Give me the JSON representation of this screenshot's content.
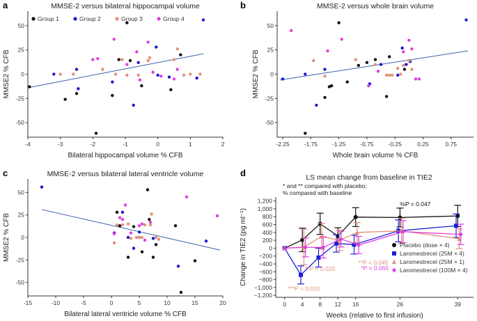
{
  "figure": {
    "colors": {
      "group1": "#111111",
      "group2": "#1c1cd6",
      "group3": "#e0917a",
      "group4": "#e040e0",
      "fit": "#3a5fa8"
    }
  },
  "chart_data": [
    {
      "panel": "a",
      "type": "scatter",
      "title": "MMSE-2 versus bilateral hippocampal volume",
      "xlabel": "Bilateral hippocampal volume % CFB",
      "ylabel": "MMSE2 % CFB",
      "xlim": [
        -4,
        2
      ],
      "ylim": [
        -65,
        65
      ],
      "xticks": [
        -4,
        -3,
        -2,
        -1,
        0,
        1,
        2
      ],
      "yticks": [
        -50,
        -25,
        0,
        25,
        50
      ],
      "legend": [
        "Group 1",
        "Group 2",
        "Group 3",
        "Group 4"
      ],
      "fit": [
        [
          -4,
          -14
        ],
        [
          1.4,
          21
        ]
      ],
      "series": [
        {
          "name": "Group 1",
          "points": [
            [
              -3.95,
              -13
            ],
            [
              -2.85,
              -26
            ],
            [
              -2.5,
              -20
            ],
            [
              -1.9,
              -61
            ],
            [
              -1.4,
              -22
            ],
            [
              -1.2,
              15
            ],
            [
              -0.95,
              53
            ],
            [
              -0.85,
              14
            ],
            [
              -0.5,
              -12
            ],
            [
              0.4,
              -16
            ],
            [
              0.7,
              20
            ]
          ]
        },
        {
          "name": "Group 2",
          "points": [
            [
              -3.2,
              0
            ],
            [
              -2.5,
              5
            ],
            [
              -2.45,
              -15
            ],
            [
              -1.4,
              -8
            ],
            [
              -0.75,
              -32
            ],
            [
              -0.6,
              12
            ],
            [
              -0.05,
              28
            ],
            [
              0,
              -1
            ],
            [
              0.35,
              -3
            ],
            [
              1.2,
              -4
            ],
            [
              1.4,
              56
            ]
          ]
        },
        {
          "name": "Group 3",
          "points": [
            [
              -3.0,
              0
            ],
            [
              -2.6,
              0
            ],
            [
              -1.7,
              5
            ],
            [
              -1.3,
              0
            ],
            [
              -1.1,
              15
            ],
            [
              -0.95,
              -1
            ],
            [
              -0.6,
              -1
            ],
            [
              -0.3,
              14
            ],
            [
              -0.25,
              17
            ],
            [
              0.5,
              15
            ],
            [
              0.6,
              26
            ],
            [
              0.8,
              -1
            ],
            [
              1.0,
              0
            ],
            [
              1.3,
              0
            ]
          ]
        },
        {
          "name": "Group 4",
          "points": [
            [
              -2.0,
              15
            ],
            [
              -1.85,
              16
            ],
            [
              -1.35,
              36
            ],
            [
              -0.95,
              10
            ],
            [
              -0.65,
              23
            ],
            [
              -0.55,
              -6
            ],
            [
              -0.3,
              33
            ],
            [
              -0.15,
              2
            ],
            [
              0.1,
              -2
            ],
            [
              0.5,
              -5
            ],
            [
              0.6,
              5
            ]
          ]
        }
      ]
    },
    {
      "panel": "b",
      "type": "scatter",
      "title": "MMSE-2 versus whole brain volume",
      "xlabel": "Whole brain volume % CFB",
      "ylabel": "MMSE2 % CFB",
      "xlim": [
        -2.35,
        1.15
      ],
      "ylim": [
        -65,
        65
      ],
      "xticks": [
        "-2.25",
        "-1.75",
        "-1.25",
        "-0.75",
        "-0.25",
        "0.25",
        "0.75"
      ],
      "xtickvals": [
        -2.25,
        -1.75,
        -1.25,
        -0.75,
        -0.25,
        0.25,
        0.75
      ],
      "yticks": [
        -50,
        -25,
        0,
        25,
        50
      ],
      "fit": [
        [
          -2.3,
          -6
        ],
        [
          1.05,
          24
        ]
      ],
      "series": [
        {
          "name": "Group 1",
          "points": [
            [
              -1.85,
              -61
            ],
            [
              -1.5,
              -24
            ],
            [
              -1.42,
              -13
            ],
            [
              -1.38,
              -12
            ],
            [
              -1.25,
              53
            ],
            [
              -1.1,
              -8
            ],
            [
              -0.9,
              9
            ],
            [
              -0.75,
              12
            ],
            [
              -0.6,
              15
            ],
            [
              -0.4,
              -23
            ],
            [
              -0.35,
              18
            ],
            [
              -0.08,
              5
            ]
          ]
        },
        {
          "name": "Group 2",
          "points": [
            [
              -2.25,
              -5
            ],
            [
              -1.85,
              0
            ],
            [
              -1.65,
              -32
            ],
            [
              -1.5,
              5
            ],
            [
              -0.7,
              -10
            ],
            [
              -0.5,
              10
            ],
            [
              -0.2,
              -1
            ],
            [
              -0.12,
              27
            ],
            [
              -0.05,
              10
            ],
            [
              0.02,
              13
            ],
            [
              1.02,
              56
            ]
          ]
        },
        {
          "name": "Group 3",
          "points": [
            [
              -1.7,
              14
            ],
            [
              -1.5,
              -2
            ],
            [
              -0.95,
              15
            ],
            [
              -0.6,
              10
            ],
            [
              -0.35,
              -1
            ],
            [
              -0.3,
              -1
            ],
            [
              -0.2,
              6
            ],
            [
              -0.15,
              0
            ],
            [
              -0.1,
              9
            ],
            [
              0.0,
              14
            ],
            [
              0.05,
              5
            ],
            [
              -0.4,
              -1
            ]
          ]
        },
        {
          "name": "Group 4",
          "points": [
            [
              -2.1,
              45
            ],
            [
              -1.45,
              24
            ],
            [
              -1.2,
              36
            ],
            [
              -0.72,
              -12
            ],
            [
              -0.55,
              3
            ],
            [
              -0.1,
              23
            ],
            [
              0.0,
              35
            ],
            [
              0.05,
              26
            ],
            [
              0.12,
              -5
            ],
            [
              0.18,
              -5
            ]
          ]
        }
      ]
    },
    {
      "panel": "c",
      "type": "scatter",
      "title": "MMSE-2 versus bilateral lateral ventricle volume",
      "xlabel": "Bilateral lateral ventricle volume % CFB",
      "ylabel": "MMSE2 % CFB",
      "xlim": [
        -15,
        20
      ],
      "ylim": [
        -65,
        65
      ],
      "xticks": [
        -15,
        -10,
        -5,
        0,
        5,
        10,
        15,
        20
      ],
      "yticks": [
        -50,
        -25,
        0,
        25,
        50
      ],
      "fit": [
        [
          -12.5,
          31
        ],
        [
          19.5,
          -14
        ]
      ],
      "series": [
        {
          "name": "Group 1",
          "points": [
            [
              1.0,
              28
            ],
            [
              1.5,
              13
            ],
            [
              3.0,
              -22
            ],
            [
              4.0,
              12
            ],
            [
              5.0,
              0
            ],
            [
              5.5,
              -16
            ],
            [
              6.5,
              53
            ],
            [
              6.8,
              20
            ],
            [
              7.5,
              -22
            ],
            [
              8.0,
              -8
            ],
            [
              11.5,
              13
            ],
            [
              12.5,
              -61
            ],
            [
              15.0,
              -26
            ]
          ]
        },
        {
          "name": "Group 2",
          "points": [
            [
              -12.5,
              56
            ],
            [
              0.5,
              5
            ],
            [
              2.0,
              28
            ],
            [
              3.0,
              0
            ],
            [
              4.0,
              -12
            ],
            [
              5.0,
              6
            ],
            [
              7.5,
              -1
            ],
            [
              12.0,
              -32
            ],
            [
              17.0,
              -4
            ]
          ]
        },
        {
          "name": "Group 3",
          "points": [
            [
              0.5,
              -6
            ],
            [
              1.0,
              14
            ],
            [
              2.0,
              14
            ],
            [
              3.0,
              15
            ],
            [
              3.5,
              -1
            ],
            [
              4.5,
              0
            ],
            [
              5.0,
              0
            ],
            [
              5.5,
              0
            ],
            [
              6.0,
              14
            ],
            [
              7.0,
              14
            ],
            [
              7.2,
              26
            ],
            [
              8.0,
              0
            ],
            [
              8.5,
              -2
            ]
          ]
        },
        {
          "name": "Group 4",
          "points": [
            [
              0.5,
              4
            ],
            [
              1.5,
              22
            ],
            [
              2.0,
              20
            ],
            [
              2.5,
              36
            ],
            [
              3.5,
              5
            ],
            [
              5.0,
              13
            ],
            [
              5.5,
              15
            ],
            [
              6.0,
              -3
            ],
            [
              7.0,
              17
            ],
            [
              13.5,
              45
            ],
            [
              19.0,
              24
            ]
          ]
        }
      ]
    },
    {
      "panel": "d",
      "type": "line",
      "title": "LS mean change from baseline in TIE2",
      "xlabel": "Weeks (relative to first infusion)",
      "ylabel": "Change in TIE2 (pg ml⁻¹)",
      "xlim": [
        -2,
        41
      ],
      "ylim": [
        -1250,
        1300
      ],
      "xticks": [
        0,
        4,
        8,
        12,
        16,
        26,
        39
      ],
      "yticks": [
        -1200,
        -1000,
        -800,
        -600,
        -400,
        -200,
        0,
        200,
        400,
        600,
        800,
        1000,
        1200
      ],
      "yticklabels": [
        "−1,200",
        "−1,000",
        "−800",
        "−600",
        "−400",
        "−200",
        "0",
        "200",
        "400",
        "600",
        "800",
        "1,000",
        "1,200"
      ],
      "note_line1": "* and ** compared with placebo;",
      "note_line2": "% compared with baseline",
      "series": [
        {
          "name": "Placebo (dose × 4)",
          "x": [
            0,
            4,
            8,
            12,
            16,
            26,
            39
          ],
          "y": [
            0,
            210,
            620,
            310,
            790,
            780,
            820
          ],
          "err": [
            0,
            300,
            270,
            210,
            240,
            240,
            270
          ]
        },
        {
          "name": "Laromestrecel (25M × 4)",
          "x": [
            0,
            4,
            8,
            12,
            16,
            26,
            39
          ],
          "y": [
            0,
            -680,
            -240,
            120,
            90,
            440,
            570
          ],
          "err": [
            0,
            230,
            240,
            220,
            240,
            280,
            300
          ]
        },
        {
          "name": "Laromestrecel (25M × 1)",
          "x": [
            0,
            4,
            8,
            12,
            16,
            26,
            39
          ],
          "y": [
            0,
            30,
            300,
            200,
            400,
            440,
            240
          ],
          "err": [
            0,
            450,
            330,
            260,
            250,
            320,
            250
          ]
        },
        {
          "name": "Laromestrecel (100M × 4)",
          "x": [
            0,
            4,
            8,
            12,
            16,
            26,
            39
          ],
          "y": [
            0,
            20,
            20,
            230,
            80,
            420,
            350
          ],
          "err": [
            0,
            240,
            270,
            200,
            220,
            280,
            260
          ]
        }
      ],
      "annotations": [
        {
          "text": "%P = 0.047",
          "x": 26,
          "y": 1070,
          "color": "#111111"
        },
        {
          "text": "**P = 0.045",
          "x": 16.6,
          "y": -420,
          "color": "#e0917a"
        },
        {
          "text": "*P = 0.065",
          "x": 17.2,
          "y": -560,
          "color": "#e040e0"
        },
        {
          "text": "**P = 0.020",
          "x": 4.6,
          "y": -580,
          "color": "#e0917a"
        },
        {
          "text": "***P = 0.010",
          "x": 0.7,
          "y": -1080,
          "color": "#e0917a"
        }
      ]
    }
  ]
}
